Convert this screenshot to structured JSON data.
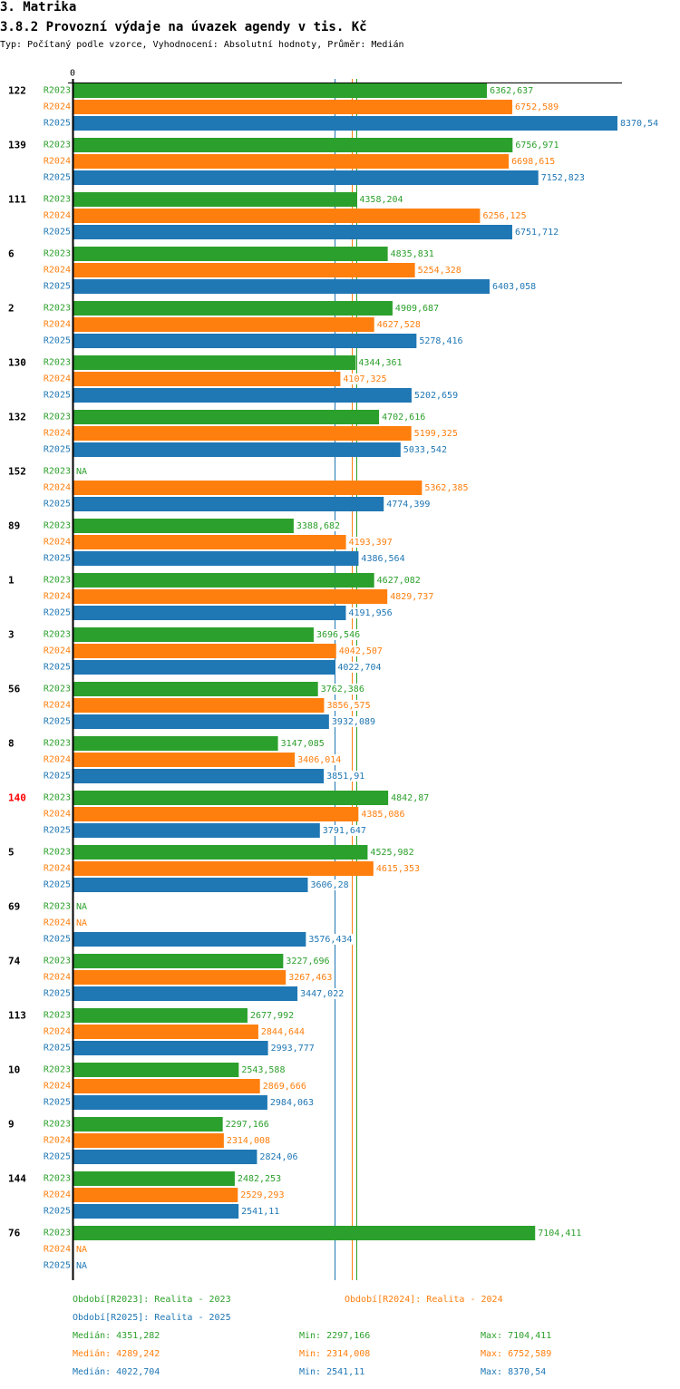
{
  "page": {
    "section_title": "3. Matrika",
    "chart_title": "3.8.2 Provozní výdaje na úvazek agendy v tis. Kč",
    "subtitle": "Typ: Počítaný podle vzorce, Vyhodnocení: Absolutní hodnoty, Průměr: Medián"
  },
  "chart_data": {
    "type": "bar",
    "orientation": "horizontal",
    "title": "3.8.2 Provozní výdaje na úvazek agendy v tis. Kč",
    "subtitle": "Typ: Počítaný podle vzorce, Vyhodnocení: Absolutní hodnoty, Průměr: Medián",
    "xlabel": "",
    "ylabel": "",
    "x_tick_labels": [
      "0"
    ],
    "xlim": [
      0,
      8370.54
    ],
    "grid": false,
    "legend_position": "bottom",
    "categories": [
      "122",
      "139",
      "111",
      "6",
      "2",
      "130",
      "132",
      "152",
      "89",
      "1",
      "3",
      "56",
      "8",
      "140",
      "5",
      "69",
      "74",
      "113",
      "10",
      "9",
      "144",
      "76"
    ],
    "highlight": {
      "category": "140",
      "color": "#ff0000"
    },
    "series": [
      {
        "name": "R2023",
        "color": "#2ca02c",
        "values": [
          6362.637,
          6756.971,
          4358.204,
          4835.831,
          4909.687,
          4344.361,
          4702.616,
          null,
          3388.682,
          4627.082,
          3696.546,
          3762.386,
          3147.085,
          4842.87,
          4525.982,
          null,
          3227.696,
          2677.992,
          2543.588,
          2297.166,
          2482.253,
          7104.411
        ],
        "value_labels": [
          "6362,637",
          "6756,971",
          "4358,204",
          "4835,831",
          "4909,687",
          "4344,361",
          "4702,616",
          "NA",
          "3388,682",
          "4627,082",
          "3696,546",
          "3762,386",
          "3147,085",
          "4842,87",
          "4525,982",
          "NA",
          "3227,696",
          "2677,992",
          "2543,588",
          "2297,166",
          "2482,253",
          "7104,411"
        ]
      },
      {
        "name": "R2024",
        "color": "#ff7f0e",
        "values": [
          6752.589,
          6698.615,
          6256.125,
          5254.328,
          4627.528,
          4107.325,
          5199.325,
          5362.385,
          4193.397,
          4829.737,
          4042.507,
          3856.575,
          3406.014,
          4385.086,
          4615.353,
          null,
          3267.463,
          2844.644,
          2869.666,
          2314.008,
          2529.293,
          null
        ],
        "value_labels": [
          "6752,589",
          "6698,615",
          "6256,125",
          "5254,328",
          "4627,528",
          "4107,325",
          "5199,325",
          "5362,385",
          "4193,397",
          "4829,737",
          "4042,507",
          "3856,575",
          "3406,014",
          "4385,086",
          "4615,353",
          "NA",
          "3267,463",
          "2844,644",
          "2869,666",
          "2314,008",
          "2529,293",
          "NA"
        ]
      },
      {
        "name": "R2025",
        "color": "#1f77b4",
        "values": [
          8370.54,
          7152.823,
          6751.712,
          6403.058,
          5278.416,
          5202.659,
          5033.542,
          4774.399,
          4386.564,
          4191.956,
          4022.704,
          3932.089,
          3851.91,
          3791.647,
          3606.28,
          3576.434,
          3447.022,
          2993.777,
          2984.063,
          2824.06,
          2541.11,
          null
        ],
        "value_labels": [
          "8370,54",
          "7152,823",
          "6751,712",
          "6403,058",
          "5278,416",
          "5202,659",
          "5033,542",
          "4774,399",
          "4386,564",
          "4191,956",
          "4022,704",
          "3932,089",
          "3851,91",
          "3791,647",
          "3606,28",
          "3576,434",
          "3447,022",
          "2993,777",
          "2984,063",
          "2824,06",
          "2541,11",
          "NA"
        ]
      }
    ],
    "reference_lines": [
      {
        "series": "R2023",
        "type": "median",
        "value": 4351.282,
        "color": "#2ca02c"
      },
      {
        "series": "R2024",
        "type": "median",
        "value": 4289.242,
        "color": "#ff7f0e"
      },
      {
        "series": "R2025",
        "type": "median",
        "value": 4022.704,
        "color": "#1f77b4"
      }
    ]
  },
  "legend": {
    "entries": [
      {
        "label": "Období[R2023]: Realita - 2023",
        "color": "#2ca02c"
      },
      {
        "label": "Období[R2024]: Realita - 2024",
        "color": "#ff7f0e"
      },
      {
        "label": "Období[R2025]: Realita - 2025",
        "color": "#1f77b4"
      }
    ],
    "stats": [
      {
        "median": "Medián: 4351,282",
        "min": "Min: 2297,166",
        "max": "Max: 7104,411",
        "color": "#2ca02c"
      },
      {
        "median": "Medián: 4289,242",
        "min": "Min: 2314,008",
        "max": "Max: 6752,589",
        "color": "#ff7f0e"
      },
      {
        "median": "Medián: 4022,704",
        "min": "Min: 2541,11",
        "max": "Max: 8370,54",
        "color": "#1f77b4"
      }
    ]
  }
}
